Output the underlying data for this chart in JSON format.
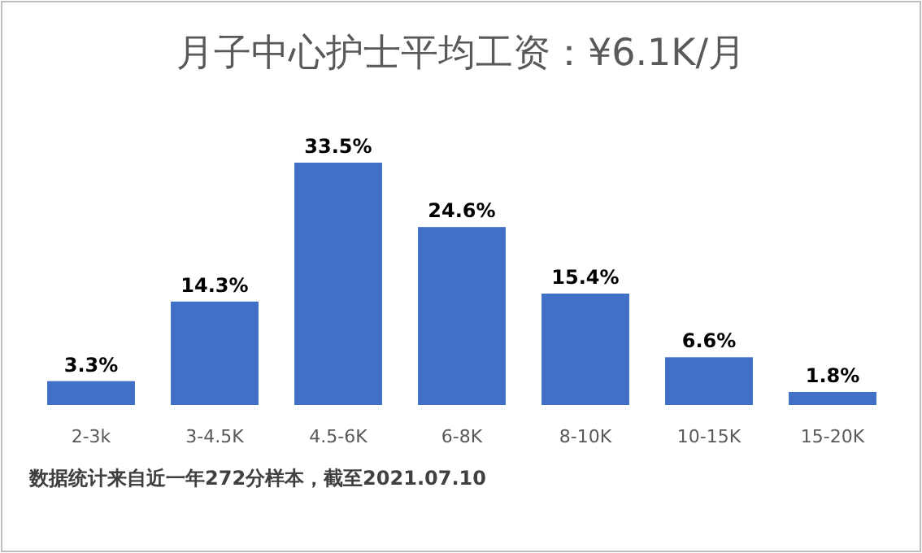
{
  "chart_data": {
    "type": "bar",
    "title": "月子中心护士平均工资：¥6.1K/月",
    "categories": [
      "2-3k",
      "3-4.5K",
      "4.5-6K",
      "6-8K",
      "8-10K",
      "10-15K",
      "15-20K"
    ],
    "values": [
      3.3,
      14.3,
      33.5,
      24.6,
      15.4,
      6.6,
      1.8
    ],
    "value_labels": [
      "3.3%",
      "14.3%",
      "33.5%",
      "24.6%",
      "15.4%",
      "6.6%",
      "1.8%"
    ],
    "color": "#4070c8",
    "annotations": [
      "数据统计来自近一年272分样本，截至2021.07.10"
    ]
  }
}
